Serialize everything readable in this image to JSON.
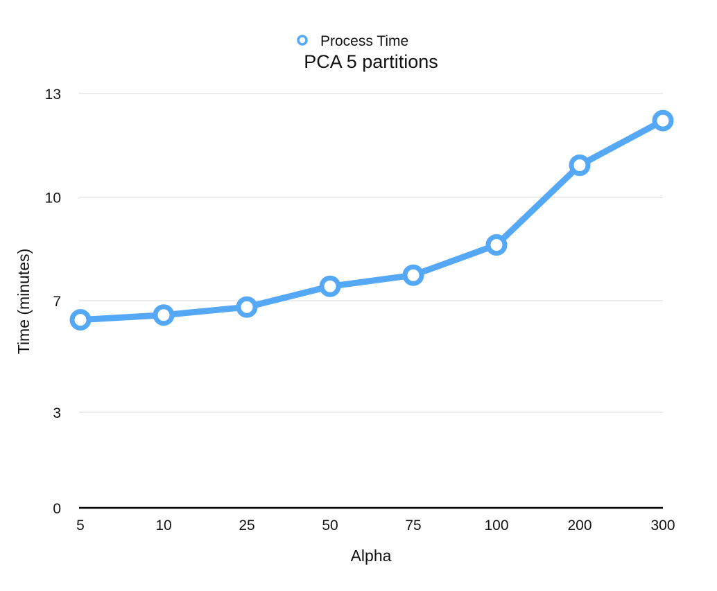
{
  "chart_data": {
    "type": "line",
    "title": "PCA 5 partitions",
    "xlabel": "Alpha",
    "ylabel": "Time (minutes)",
    "categories": [
      "5",
      "10",
      "25",
      "50",
      "75",
      "100",
      "200",
      "300"
    ],
    "y_ticks": [
      "0",
      "3",
      "7",
      "10",
      "13"
    ],
    "y_tick_values": [
      0,
      3,
      6.5,
      9.75,
      13
    ],
    "ylim": [
      0,
      13
    ],
    "grid": true,
    "legend_position": "top-center",
    "series": [
      {
        "name": "Process Time",
        "color": "#55a8f5",
        "values": [
          5.9,
          6.05,
          6.3,
          6.95,
          7.3,
          8.25,
          10.75,
          12.15
        ]
      }
    ]
  }
}
